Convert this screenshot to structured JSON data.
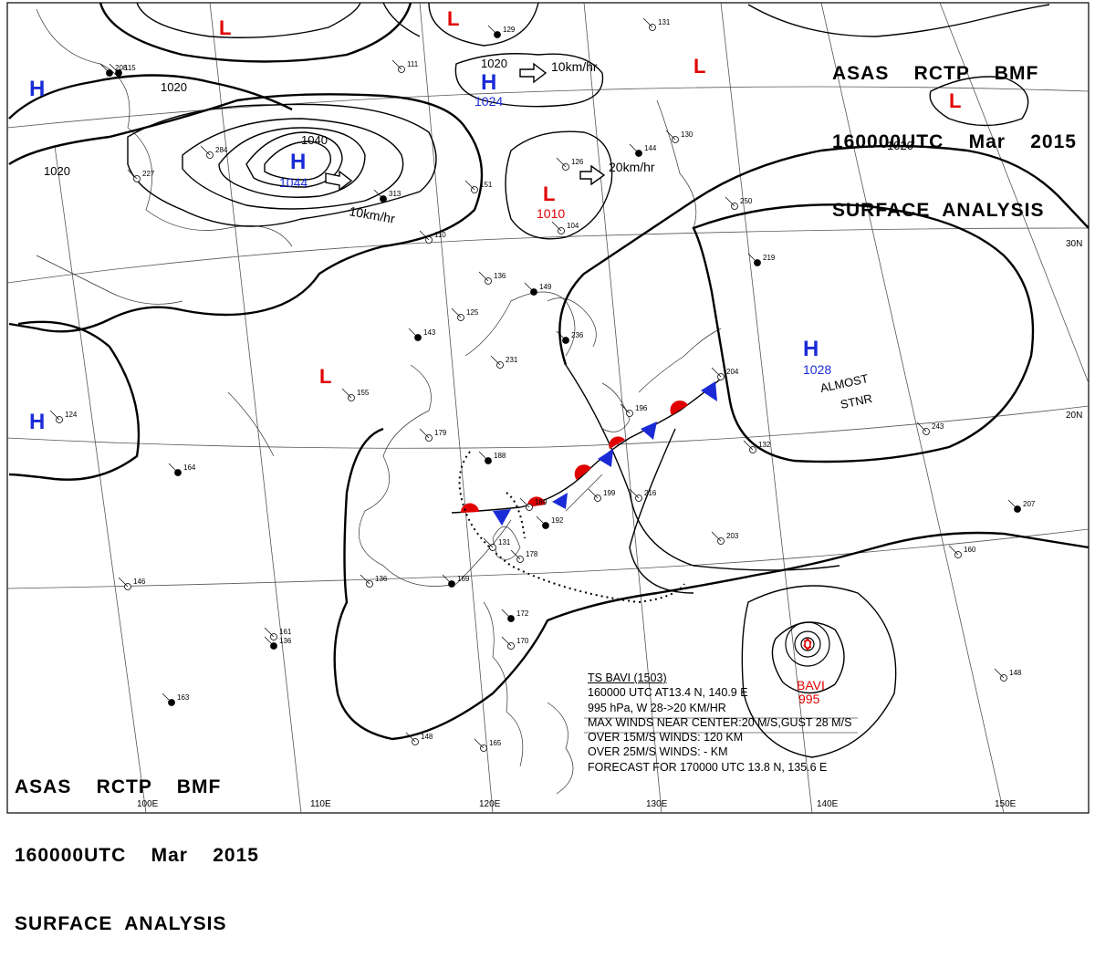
{
  "header": {
    "line1": "ASAS    RCTP    BMF",
    "line2": "160000UTC    Mar    2015",
    "line3": "SURFACE  ANALYSIS"
  },
  "pressure_systems": [
    {
      "type": "H",
      "value": "1044"
    },
    {
      "type": "H",
      "value": "1024"
    },
    {
      "type": "H",
      "value": "1028"
    },
    {
      "type": "H",
      "value": ""
    },
    {
      "type": "H",
      "value": ""
    },
    {
      "type": "L",
      "value": "1010"
    },
    {
      "type": "L",
      "value": ""
    },
    {
      "type": "L",
      "value": ""
    },
    {
      "type": "L",
      "value": ""
    },
    {
      "type": "L",
      "value": ""
    }
  ],
  "isobar_labels": [
    "1020",
    "1020",
    "1040",
    "1020",
    "1020"
  ],
  "movement_labels": [
    "10km/hr",
    "10km/hr",
    "20km/hr"
  ],
  "stationary_note": {
    "line1": "ALMOST",
    "line2": "STNR"
  },
  "typhoon": {
    "name": "BAVI",
    "pressure": "995",
    "info": [
      "TS  BAVI  (1503)",
      "160000 UTC  AT13.4 N, 140.9 E",
      "995 hPa, W  28->20 KM/HR",
      "MAX WINDS NEAR CENTER:20 M/S,GUST 28 M/S",
      "OVER 15M/S WINDS: 120 KM",
      "OVER 25M/S WINDS: - KM",
      "FORECAST FOR 170000 UTC 13.8 N, 135.6 E"
    ]
  },
  "graticule": {
    "longitudes": [
      "100E",
      "110E",
      "120E",
      "130E",
      "140E",
      "150E"
    ],
    "latitudes": [
      "30N",
      "20N"
    ]
  },
  "station_numbers": [
    "129",
    "131",
    "111",
    "208",
    "284",
    "227",
    "313",
    "151",
    "126",
    "144",
    "130",
    "104",
    "149",
    "136",
    "125",
    "143",
    "155",
    "179",
    "188",
    "189",
    "199",
    "192",
    "216",
    "203",
    "169",
    "136",
    "161",
    "136",
    "148",
    "165",
    "163",
    "146",
    "124",
    "164",
    "132",
    "243",
    "219",
    "250",
    "204",
    "236",
    "231",
    "196",
    "207",
    "160",
    "148",
    "115",
    "131",
    "178",
    "172",
    "170",
    "110"
  ],
  "colors": {
    "high": "#1a2bd6",
    "low": "#e00000",
    "line": "#000000"
  }
}
